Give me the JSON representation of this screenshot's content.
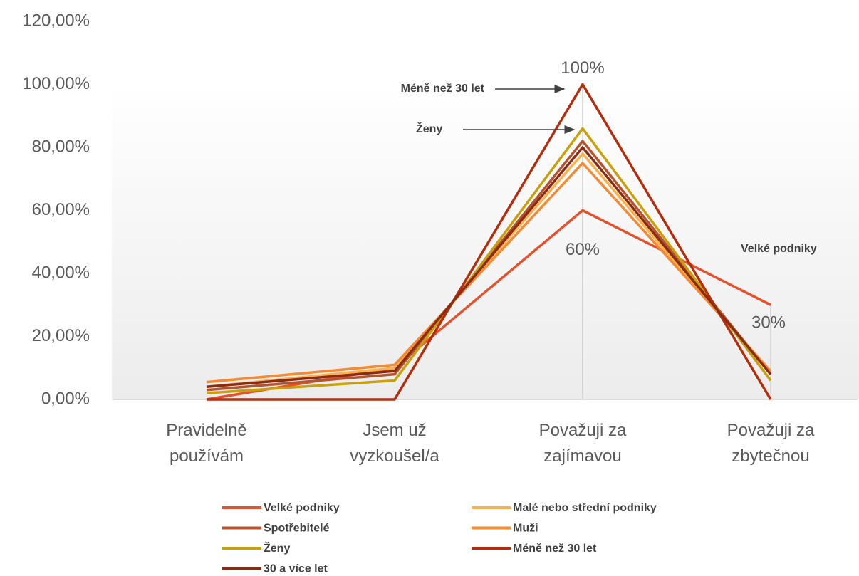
{
  "chart_data": {
    "type": "line",
    "categories": [
      "Pravidelně používám",
      "Jsem už vyzkoušel/a",
      "Považuji za zajímavou",
      "Považuji za zbytečnou"
    ],
    "series": [
      {
        "name": "Velké podniky",
        "color": "#e5512c",
        "values": [
          0,
          10,
          60,
          30
        ],
        "value_labels": [
          null,
          null,
          "60%",
          "30%"
        ]
      },
      {
        "name": "Malé nebo střední podniky",
        "color": "#fbb24d",
        "values": [
          4,
          10,
          78,
          8
        ]
      },
      {
        "name": "Spotřebitelé",
        "color": "#b4542f",
        "values": [
          3,
          8,
          82,
          8
        ]
      },
      {
        "name": "Muži",
        "color": "#f58a33",
        "values": [
          5.5,
          11,
          75,
          9
        ]
      },
      {
        "name": "Ženy",
        "color": "#c9a00c",
        "values": [
          2,
          6,
          86,
          6
        ]
      },
      {
        "name": "Méně než 30 let",
        "color": "#b52d0b",
        "values": [
          0,
          0,
          100,
          0
        ],
        "value_labels": [
          null,
          null,
          "100%",
          null
        ]
      },
      {
        "name": "30 a více let",
        "color": "#8a2b14",
        "values": [
          4,
          9,
          80,
          8
        ]
      }
    ],
    "annotations": [
      {
        "text": "Méně než 30 let",
        "series": 5,
        "point": 2
      },
      {
        "text": "Ženy",
        "series": 4,
        "point": 2
      },
      {
        "text": "Velké podniky"
      }
    ],
    "ylim": [
      0,
      120
    ],
    "yticks": [
      {
        "value": 0,
        "label": "0,00%"
      },
      {
        "value": 20,
        "label": "20,00%"
      },
      {
        "value": 40,
        "label": "40,00%"
      },
      {
        "value": 60,
        "label": "60,00%"
      },
      {
        "value": 80,
        "label": "80,00%"
      },
      {
        "value": 100,
        "label": "100,00%"
      },
      {
        "value": 120,
        "label": "120,00%"
      }
    ]
  }
}
